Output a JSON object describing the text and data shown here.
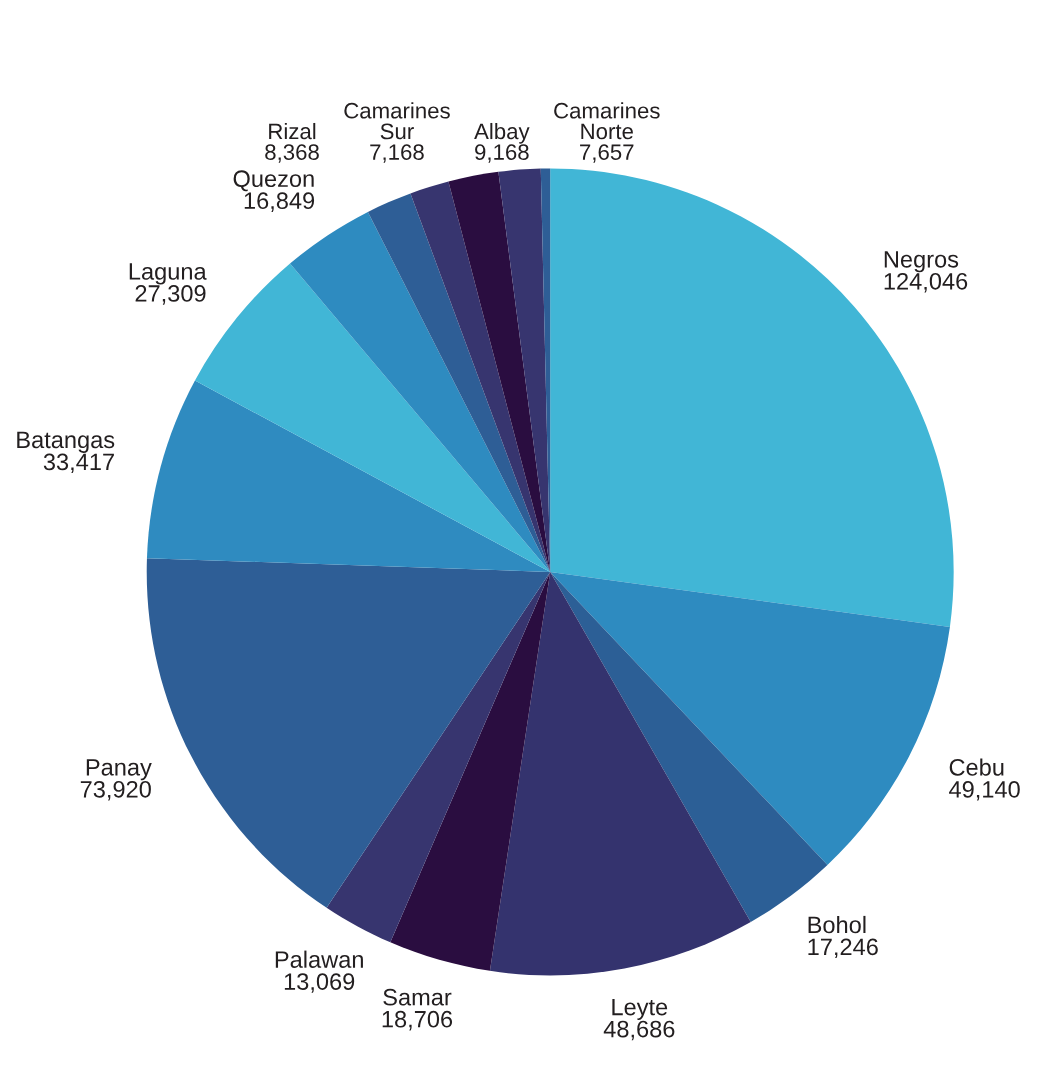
{
  "chart_data": {
    "type": "pie",
    "categories": [
      "Negros",
      "Cebu",
      "Bohol",
      "Leyte",
      "Samar",
      "Palawan",
      "Panay",
      "Batangas",
      "Laguna",
      "Quezon",
      "Rizal",
      "Camarines\nSur",
      "Albay",
      "Camarines\nNorte",
      null
    ],
    "values": [
      124046,
      49140,
      17246,
      48686,
      18706,
      13069,
      73920,
      33417,
      27309,
      16849,
      8368,
      7168,
      9168,
      7657,
      1700
    ],
    "value_labels": [
      "124,046",
      "49,140",
      "17,246",
      "48,686",
      "18,706",
      "13,069",
      "73,920",
      "33,417",
      "27,309",
      "16,849",
      "8,368",
      "7,168",
      "9,168",
      "7,657",
      null
    ],
    "colors": [
      "#41b6d6",
      "#2e8bc0",
      "#2c5f96",
      "#34336e",
      "#2a0d40",
      "#37356f",
      "#2e5e96",
      "#2f8bc0",
      "#41b6d6",
      "#2e8bc0",
      "#2e5e96",
      "#37356f",
      "#2a0d40",
      "#37356f",
      "#2e5e96"
    ],
    "legend": false
  }
}
